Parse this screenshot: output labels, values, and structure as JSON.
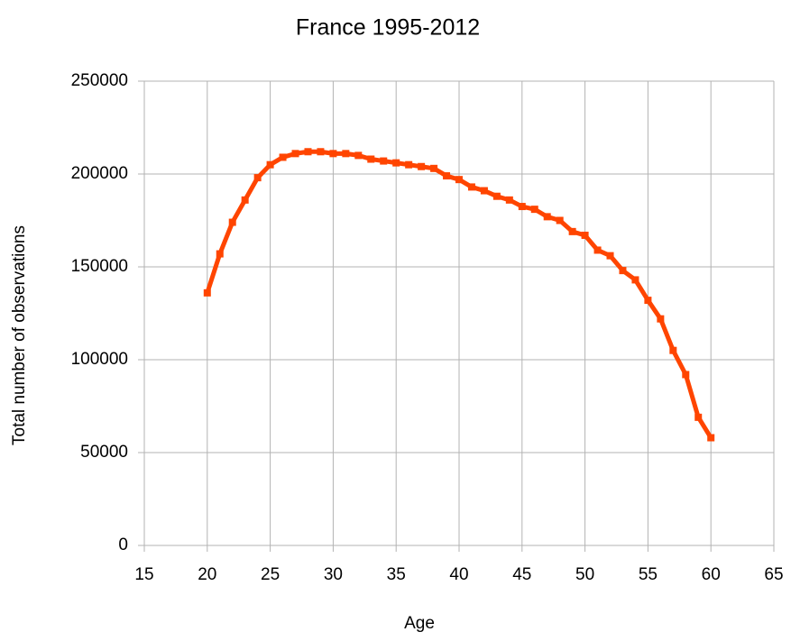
{
  "chart_data": {
    "type": "line",
    "title": "France 1995-2012",
    "x_label": "Age",
    "y_label": "Total number of observations",
    "x": [
      20,
      21,
      22,
      23,
      24,
      25,
      26,
      27,
      28,
      29,
      30,
      31,
      32,
      33,
      34,
      35,
      36,
      37,
      38,
      39,
      40,
      41,
      42,
      43,
      44,
      45,
      46,
      47,
      48,
      49,
      50,
      51,
      52,
      53,
      54,
      55,
      56,
      57,
      58,
      59,
      60
    ],
    "series": [
      {
        "name": "France 1995-2012",
        "color": "#ff4500",
        "values": [
          136000,
          157000,
          174000,
          186000,
          198000,
          205000,
          209000,
          211000,
          212000,
          212000,
          211000,
          211000,
          210000,
          208000,
          207000,
          206000,
          205000,
          204000,
          203000,
          199000,
          197000,
          193000,
          191000,
          188000,
          186000,
          182500,
          181000,
          177000,
          175000,
          169000,
          167000,
          159000,
          156000,
          148000,
          143000,
          132000,
          122000,
          105000,
          92000,
          69000,
          58000
        ]
      }
    ],
    "xlim": [
      15,
      65
    ],
    "xticks": [
      15,
      20,
      25,
      30,
      35,
      40,
      45,
      50,
      55,
      60,
      65
    ],
    "ylim": [
      0,
      250000
    ],
    "yticks": [
      0,
      50000,
      100000,
      150000,
      200000,
      250000
    ],
    "grid": true
  }
}
